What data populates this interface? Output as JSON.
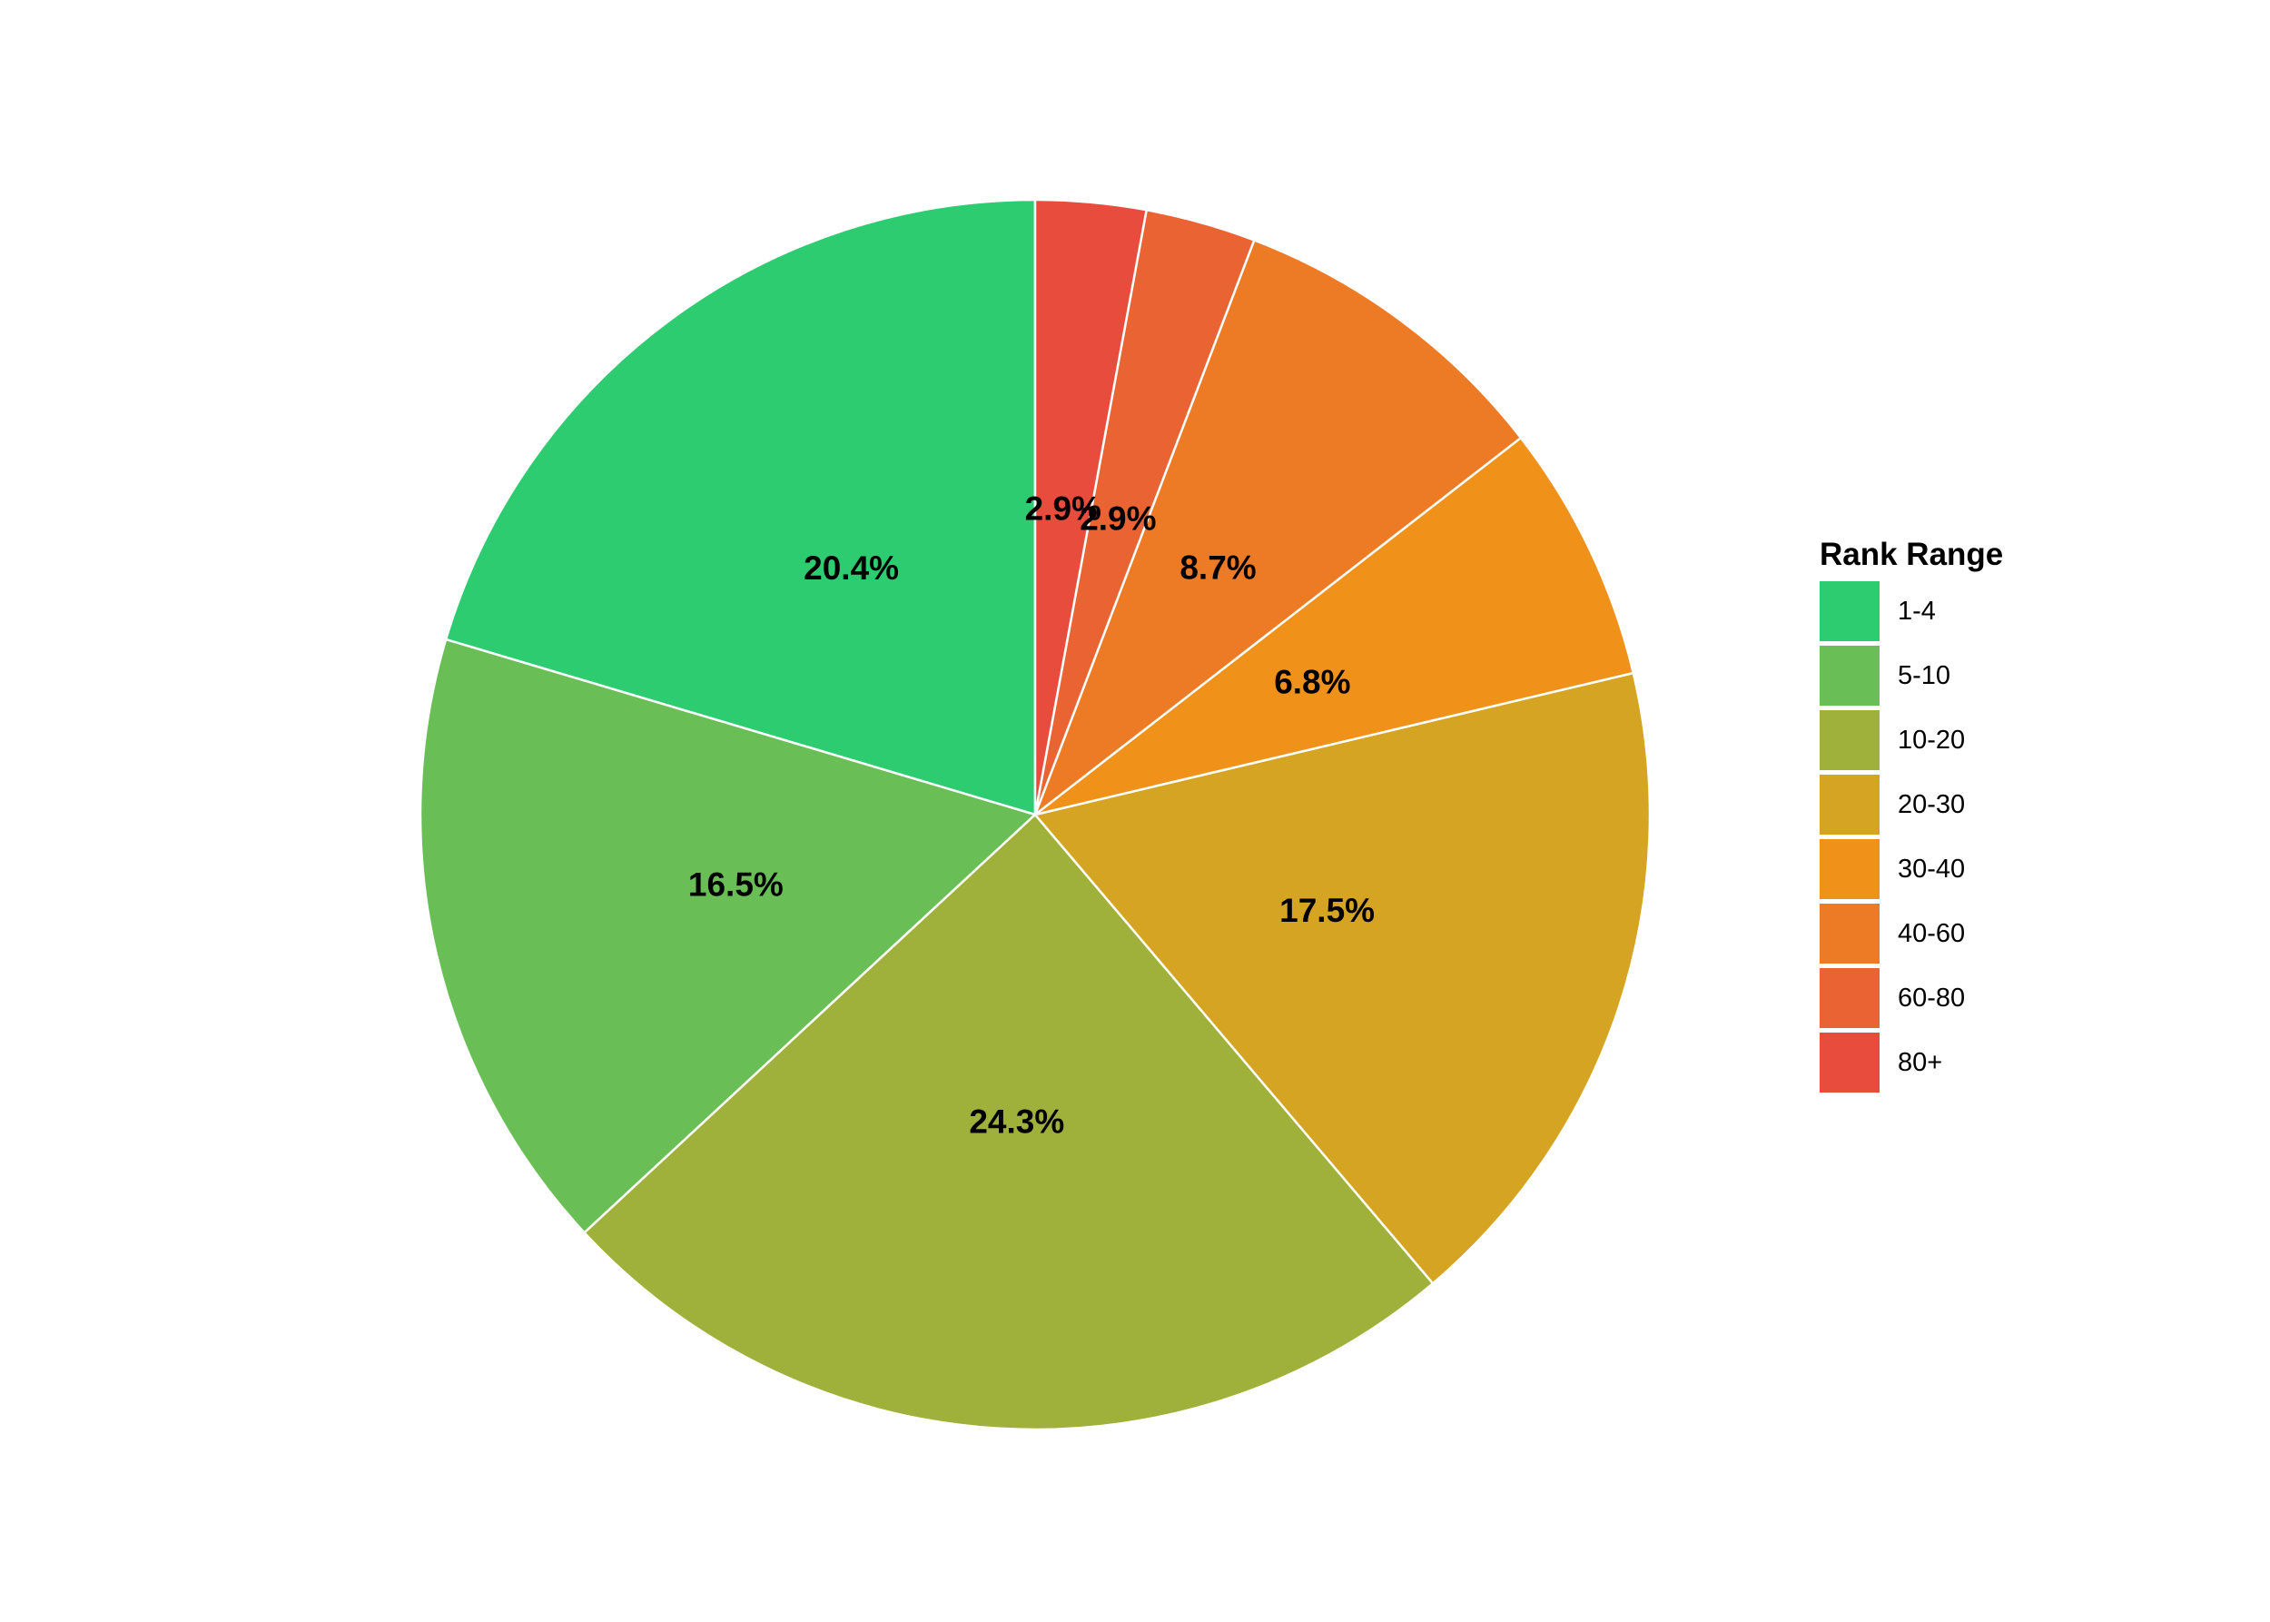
{
  "chart_data": {
    "type": "pie",
    "title": "",
    "legend": {
      "title": "Rank Range",
      "position": "right"
    },
    "slices": [
      {
        "label": "1-4",
        "value": 20.4,
        "display": "20.4%",
        "color": "#2ecc71"
      },
      {
        "label": "5-10",
        "value": 16.5,
        "display": "16.5%",
        "color": "#69bf55"
      },
      {
        "label": "10-20",
        "value": 24.3,
        "display": "24.3%",
        "color": "#a0b13b"
      },
      {
        "label": "20-30",
        "value": 17.5,
        "display": "17.5%",
        "color": "#d5a422"
      },
      {
        "label": "30-40",
        "value": 6.8,
        "display": "6.8%",
        "color": "#f0921a"
      },
      {
        "label": "40-60",
        "value": 8.7,
        "display": "8.7%",
        "color": "#ed7a24"
      },
      {
        "label": "60-80",
        "value": 2.9,
        "display": "2.9%",
        "color": "#ea6433"
      },
      {
        "label": "80+",
        "value": 2.9,
        "display": "2.9%",
        "color": "#e74c3c"
      }
    ]
  }
}
